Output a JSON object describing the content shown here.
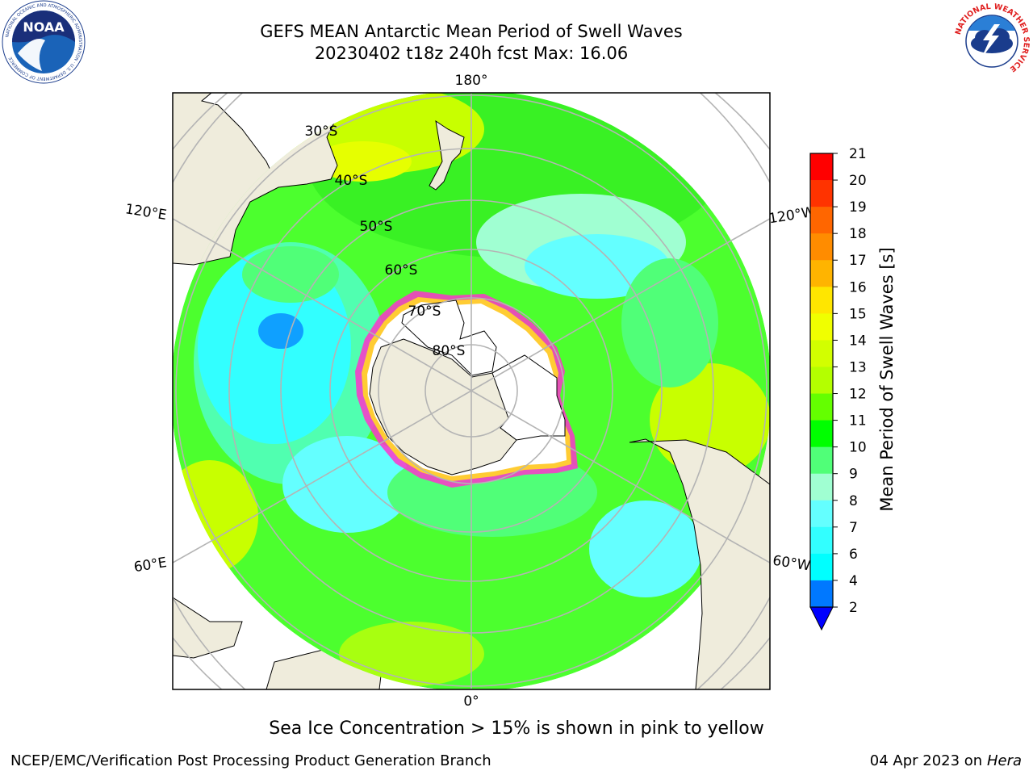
{
  "header": {
    "title_line1": "GEFS MEAN Antarctic Mean Period of Swell Waves",
    "title_line2": "20230402 t18z 240h fcst   Max: 16.06"
  },
  "logos": {
    "left": {
      "name": "noaa-logo",
      "text": "NOAA",
      "ring_text": "NATIONAL OCEANIC AND ATMOSPHERIC ADMINISTRATION · U.S. DEPARTMENT OF COMMERCE"
    },
    "right": {
      "name": "nws-logo",
      "ring_text": "NATIONAL WEATHER SERVICE"
    }
  },
  "map": {
    "projection": "south-polar-stereographic",
    "longitude_labels": [
      "180°",
      "120°E",
      "120°W",
      "60°E",
      "60°W",
      "0°"
    ],
    "latitude_labels": [
      "30°S",
      "40°S",
      "50°S",
      "60°S",
      "70°S",
      "80°S"
    ],
    "colors": {
      "land": "#efecdc",
      "ice_shelf": "#ffffff",
      "grid": "#b4b4b4",
      "sea_ice_edge_pink": "#ff33cc",
      "sea_ice_edge_yellow": "#ffcc33"
    }
  },
  "colorbar": {
    "label": "Mean Period of Swell Waves [s]",
    "ticks": [
      "21",
      "20",
      "19",
      "18",
      "17",
      "16",
      "15",
      "14",
      "13",
      "12",
      "11",
      "10",
      "9",
      "8",
      "7",
      "6",
      "4",
      "2"
    ],
    "bins": [
      {
        "from": 20,
        "to": 21,
        "color": "#ff0000"
      },
      {
        "from": 19,
        "to": 20,
        "color": "#ff3300"
      },
      {
        "from": 18,
        "to": 19,
        "color": "#ff6600"
      },
      {
        "from": 17,
        "to": 18,
        "color": "#ff8c00"
      },
      {
        "from": 16,
        "to": 17,
        "color": "#ffb400"
      },
      {
        "from": 15,
        "to": 16,
        "color": "#ffe600"
      },
      {
        "from": 14,
        "to": 15,
        "color": "#f0ff00"
      },
      {
        "from": 13,
        "to": 14,
        "color": "#d2ff00"
      },
      {
        "from": 12,
        "to": 13,
        "color": "#b4ff00"
      },
      {
        "from": 11,
        "to": 12,
        "color": "#64ff00"
      },
      {
        "from": 10,
        "to": 11,
        "color": "#00ff00"
      },
      {
        "from": 9,
        "to": 10,
        "color": "#50ff78"
      },
      {
        "from": 8,
        "to": 9,
        "color": "#a0ffd2"
      },
      {
        "from": 7,
        "to": 8,
        "color": "#64ffff"
      },
      {
        "from": 6,
        "to": 7,
        "color": "#32ffff"
      },
      {
        "from": 4,
        "to": 6,
        "color": "#00ffff"
      },
      {
        "from": 2,
        "to": 4,
        "color": "#0078ff"
      }
    ],
    "extend_min_color": "#0000ff"
  },
  "note": "Sea Ice Concentration > 15% is shown in pink to yellow",
  "footer": {
    "left": "NCEP/EMC/Verification Post Processing Product Generation Branch",
    "date": "04 Apr 2023 on",
    "machine": "Hera"
  }
}
